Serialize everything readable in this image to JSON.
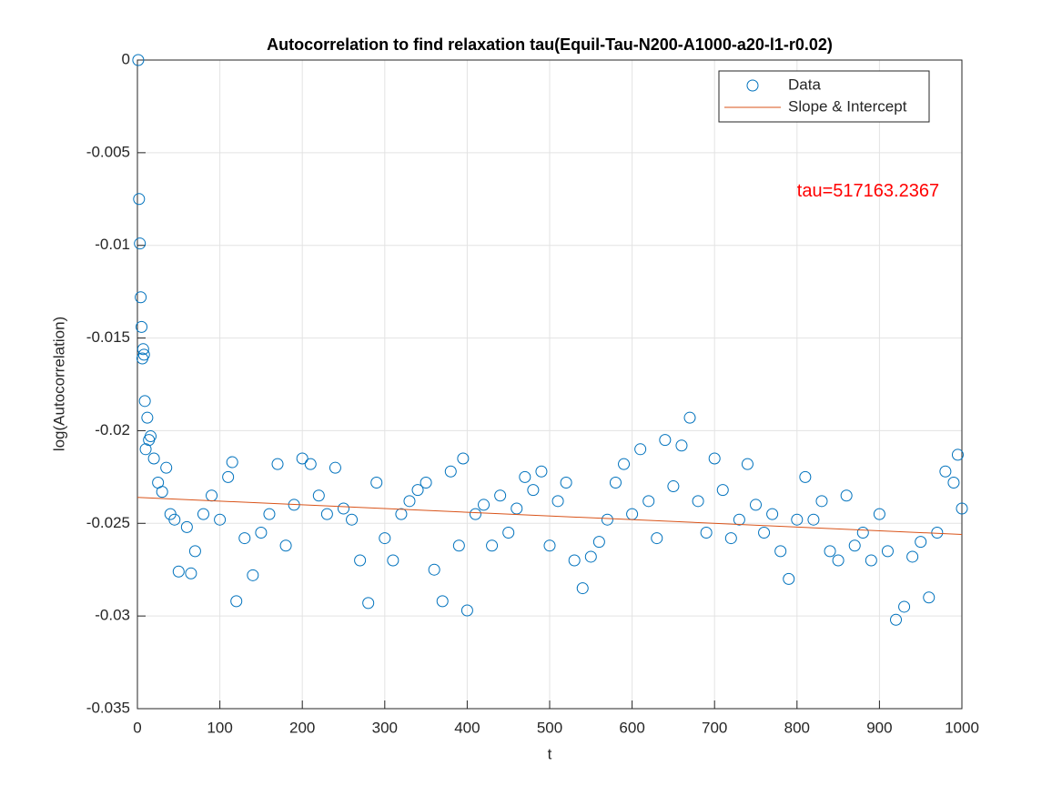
{
  "chart_data": {
    "type": "scatter",
    "title": "Autocorrelation to find relaxation tau(Equil-Tau-N200-A1000-a20-l1-r0.02)",
    "x_label": "t",
    "y_label": "log(Autocorrelation)",
    "annotation": "tau=517163.2367",
    "annotation_color": "#ff0000",
    "annotation_at": [
      800,
      -0.0071
    ],
    "xlim": [
      0,
      1000
    ],
    "ylim": [
      -0.035,
      0
    ],
    "xticks": [
      0,
      100,
      200,
      300,
      400,
      500,
      600,
      700,
      800,
      900,
      1000
    ],
    "yticks": [
      -0.035,
      -0.03,
      -0.025,
      -0.02,
      -0.015,
      -0.01,
      -0.005,
      0
    ],
    "grid": true,
    "legend": "top-right",
    "series": [
      {
        "name": "Data",
        "color": "#0072bd",
        "marker": "circle",
        "x": [
          1,
          2,
          3,
          4,
          5,
          6,
          7,
          8,
          9,
          10,
          12,
          14,
          16,
          20,
          25,
          30,
          35,
          40,
          45,
          50,
          60,
          65,
          70,
          80,
          90,
          100,
          110,
          115,
          120,
          130,
          140,
          150,
          160,
          170,
          180,
          190,
          200,
          210,
          220,
          230,
          240,
          250,
          260,
          270,
          280,
          290,
          300,
          310,
          320,
          330,
          340,
          350,
          360,
          370,
          380,
          390,
          395,
          400,
          410,
          420,
          430,
          440,
          450,
          460,
          470,
          480,
          490,
          500,
          510,
          520,
          530,
          540,
          550,
          560,
          570,
          580,
          590,
          600,
          610,
          620,
          630,
          640,
          650,
          660,
          670,
          680,
          690,
          700,
          710,
          720,
          730,
          740,
          750,
          760,
          770,
          780,
          790,
          800,
          810,
          820,
          830,
          840,
          850,
          860,
          870,
          880,
          890,
          900,
          910,
          920,
          930,
          940,
          950,
          960,
          970,
          980,
          990,
          995,
          1000
        ],
        "values": [
          0,
          -0.0075,
          -0.0099,
          -0.0128,
          -0.0144,
          -0.0161,
          -0.0156,
          -0.0159,
          -0.0184,
          -0.021,
          -0.0193,
          -0.0205,
          -0.0203,
          -0.0215,
          -0.0228,
          -0.0233,
          -0.022,
          -0.0245,
          -0.0248,
          -0.0276,
          -0.0252,
          -0.0277,
          -0.0265,
          -0.0245,
          -0.0235,
          -0.0248,
          -0.0225,
          -0.0217,
          -0.0292,
          -0.0258,
          -0.0278,
          -0.0255,
          -0.0245,
          -0.0218,
          -0.0262,
          -0.024,
          -0.0215,
          -0.0218,
          -0.0235,
          -0.0245,
          -0.022,
          -0.0242,
          -0.0248,
          -0.027,
          -0.0293,
          -0.0228,
          -0.0258,
          -0.027,
          -0.0245,
          -0.0238,
          -0.0232,
          -0.0228,
          -0.0275,
          -0.0292,
          -0.0222,
          -0.0262,
          -0.0215,
          -0.0297,
          -0.0245,
          -0.024,
          -0.0262,
          -0.0235,
          -0.0255,
          -0.0242,
          -0.0225,
          -0.0232,
          -0.0222,
          -0.0262,
          -0.0238,
          -0.0228,
          -0.027,
          -0.0285,
          -0.0268,
          -0.026,
          -0.0248,
          -0.0228,
          -0.0218,
          -0.0245,
          -0.021,
          -0.0238,
          -0.0258,
          -0.0205,
          -0.023,
          -0.0208,
          -0.0193,
          -0.0238,
          -0.0255,
          -0.0215,
          -0.0232,
          -0.0258,
          -0.0248,
          -0.0218,
          -0.024,
          -0.0255,
          -0.0245,
          -0.0265,
          -0.028,
          -0.0248,
          -0.0225,
          -0.0248,
          -0.0238,
          -0.0265,
          -0.027,
          -0.0235,
          -0.0262,
          -0.0255,
          -0.027,
          -0.0245,
          -0.0265,
          -0.0302,
          -0.0295,
          -0.0268,
          -0.026,
          -0.029,
          -0.0255,
          -0.0222,
          -0.0228,
          -0.0213,
          -0.0242
        ]
      },
      {
        "name": "Slope & Intercept",
        "color": "#d95319",
        "marker": "line",
        "x": [
          0,
          1000
        ],
        "values": [
          -0.0236,
          -0.0256
        ]
      }
    ]
  }
}
